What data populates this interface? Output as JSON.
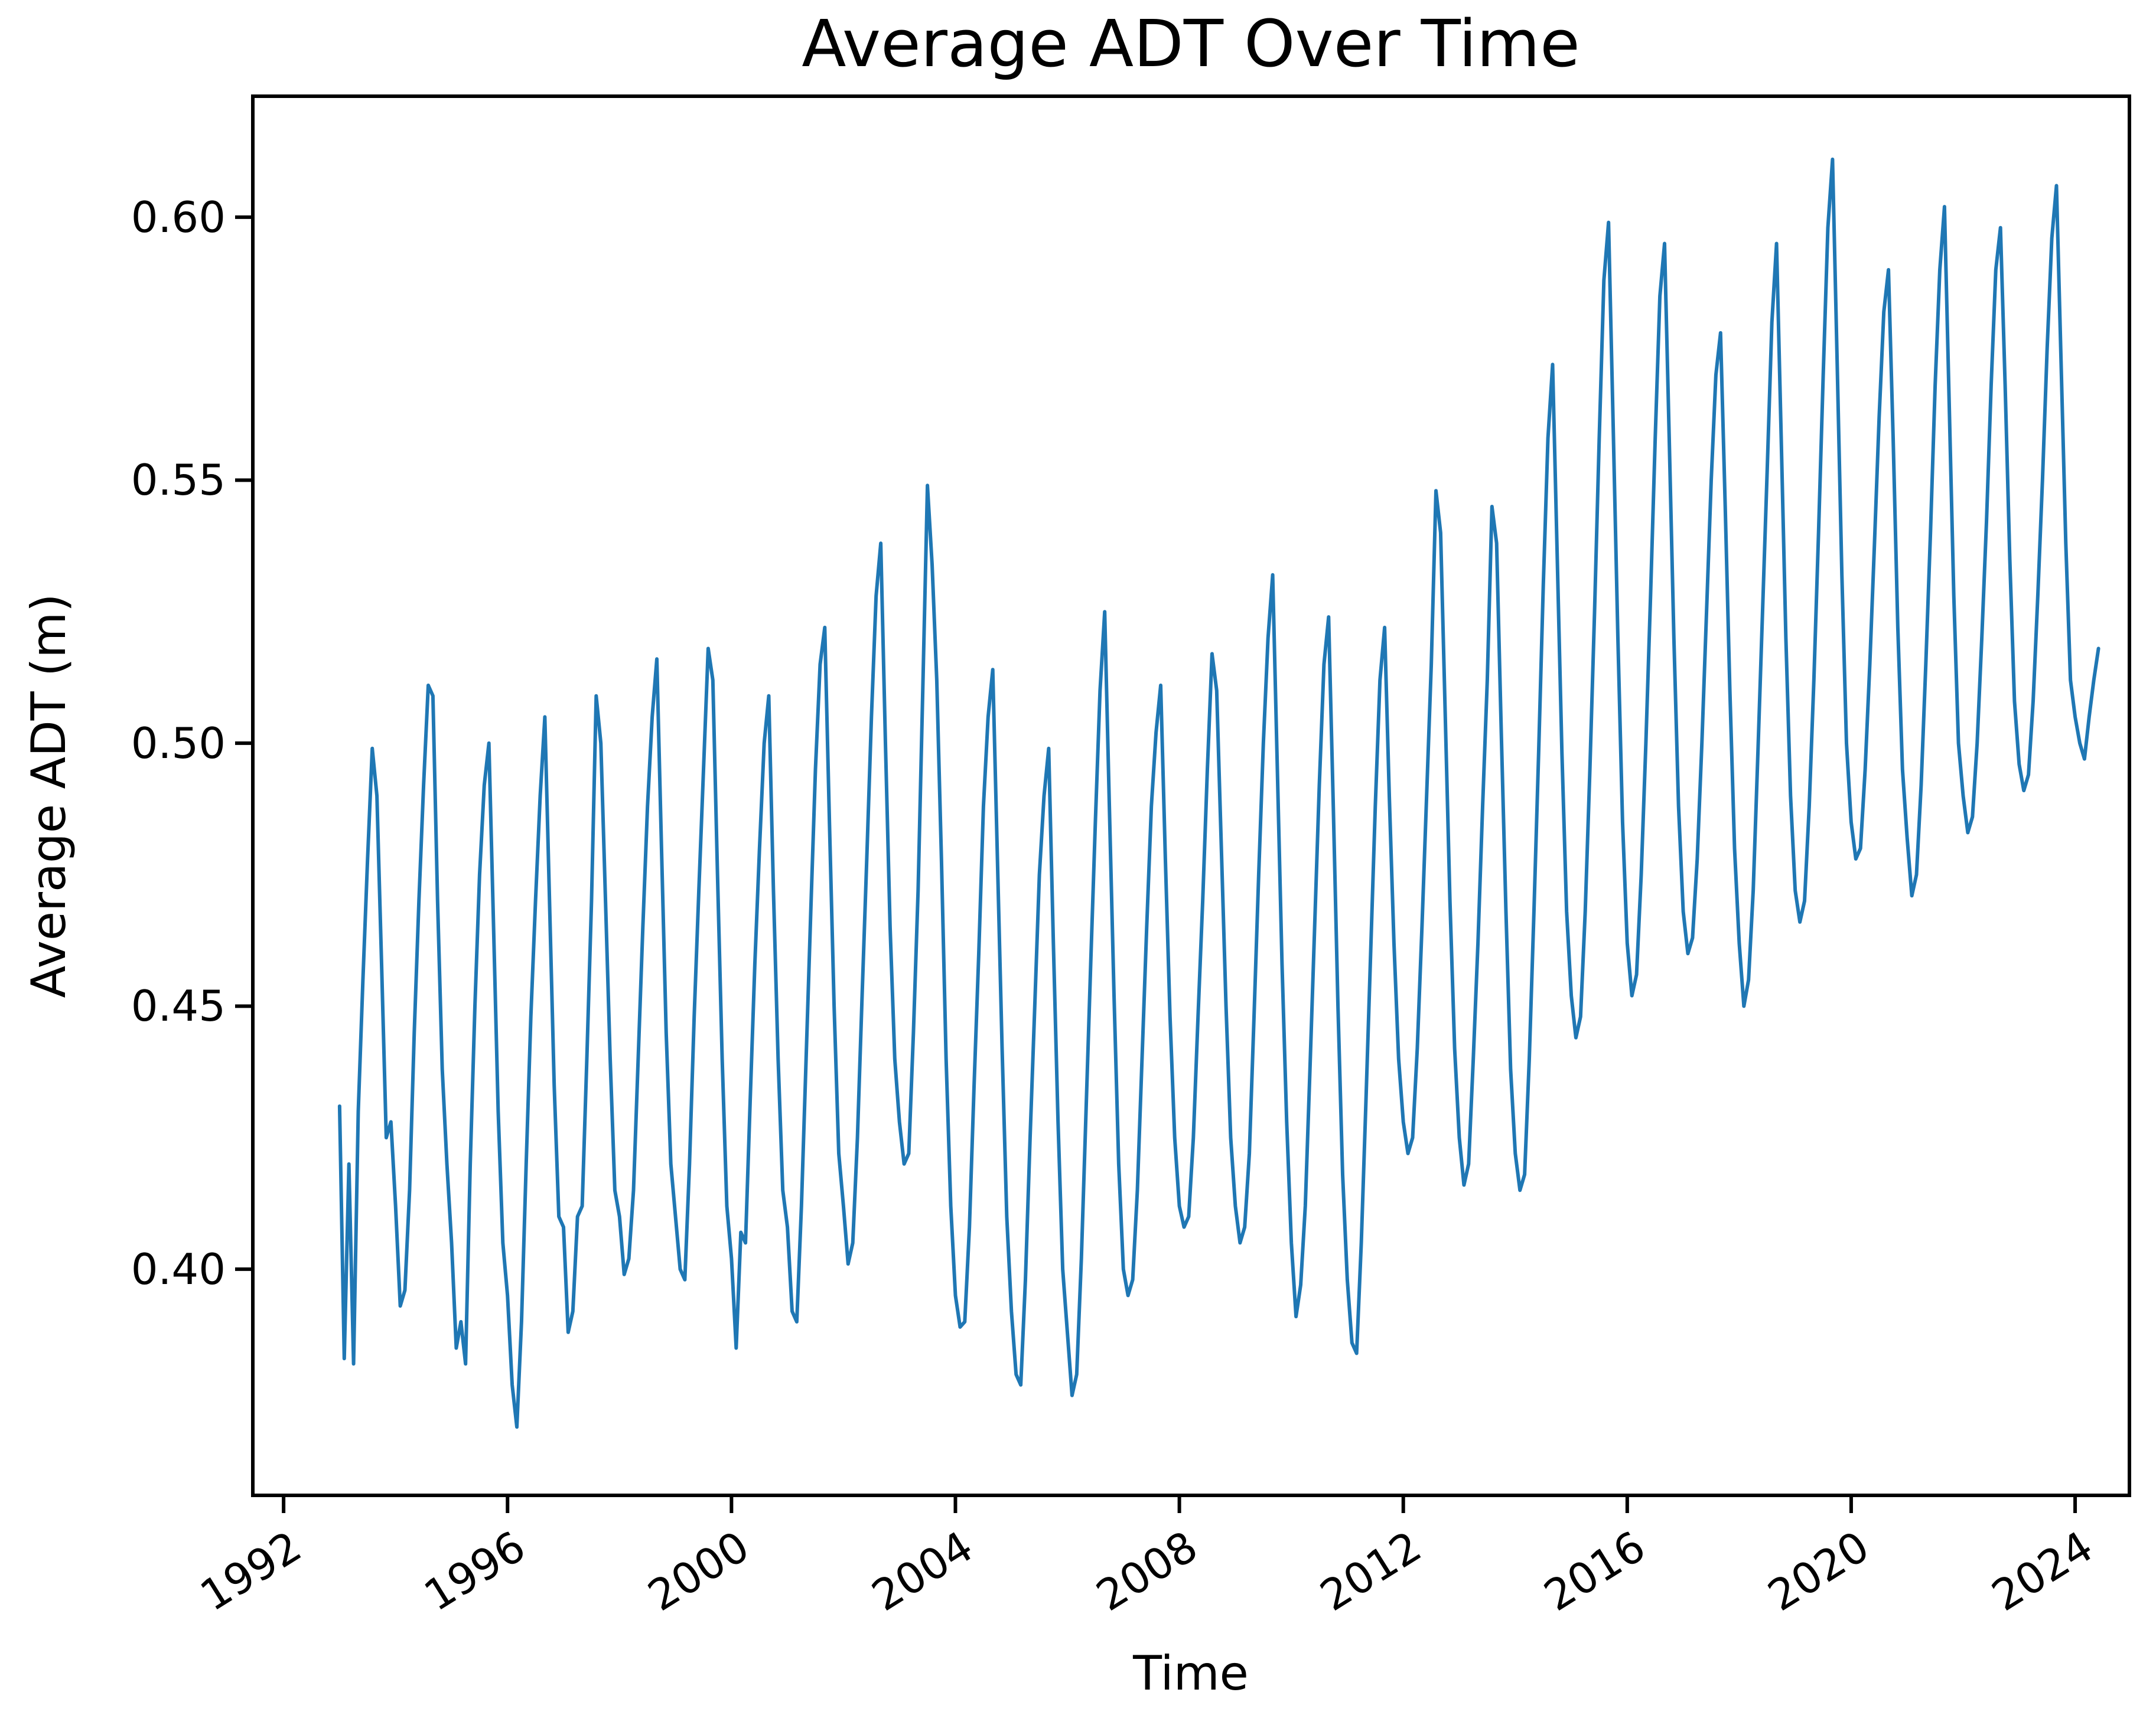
{
  "figure": {
    "title": "Average ADT Over Time",
    "x_axis_label": "Time",
    "y_axis_label": "Average ADT (m)"
  },
  "chart_data": {
    "type": "line",
    "title": "Average ADT Over Time",
    "xlabel": "Time",
    "ylabel": "Average ADT (m)",
    "grid": false,
    "legend": "none",
    "line_color": "#1f77b4",
    "axis_color": "#000000",
    "text_color": "#000000",
    "background_color": "#ffffff",
    "xlim": [
      1991.45,
      2024.97
    ],
    "ylim": [
      0.357,
      0.623
    ],
    "x_tick_values": [
      1992,
      1996,
      2000,
      2004,
      2008,
      2012,
      2016,
      2020,
      2024
    ],
    "x_tick_labels": [
      "1992",
      "1996",
      "2000",
      "2004",
      "2008",
      "2012",
      "2016",
      "2020",
      "2024"
    ],
    "x_tick_rotation_deg": 32,
    "y_tick_values": [
      0.4,
      0.45,
      0.5,
      0.55,
      0.6
    ],
    "y_tick_labels": [
      "0.40",
      "0.45",
      "0.50",
      "0.55",
      "0.60"
    ],
    "series": [
      {
        "name": "Average ADT (m), monthly",
        "frequency": "monthly",
        "start_year": 1993,
        "years": [
          {
            "year": 1993,
            "values": [
              0.431,
              0.383,
              0.42,
              0.382,
              0.43,
              0.455,
              0.478,
              0.499,
              0.49,
              0.458,
              0.425,
              0.428
            ]
          },
          {
            "year": 1994,
            "values": [
              0.412,
              0.393,
              0.396,
              0.415,
              0.445,
              0.47,
              0.492,
              0.511,
              0.509,
              0.47,
              0.438,
              0.42
            ]
          },
          {
            "year": 1995,
            "values": [
              0.405,
              0.385,
              0.39,
              0.382,
              0.42,
              0.45,
              0.475,
              0.492,
              0.5,
              0.465,
              0.43,
              0.405
            ]
          },
          {
            "year": 1996,
            "values": [
              0.395,
              0.378,
              0.37,
              0.39,
              0.42,
              0.448,
              0.47,
              0.49,
              0.505,
              0.47,
              0.435,
              0.41
            ]
          },
          {
            "year": 1997,
            "values": [
              0.408,
              0.388,
              0.392,
              0.41,
              0.412,
              0.44,
              0.47,
              0.509,
              0.5,
              0.47,
              0.44,
              0.415
            ]
          },
          {
            "year": 1998,
            "values": [
              0.41,
              0.399,
              0.402,
              0.415,
              0.44,
              0.465,
              0.488,
              0.505,
              0.516,
              0.48,
              0.445,
              0.42
            ]
          },
          {
            "year": 1999,
            "values": [
              0.41,
              0.4,
              0.398,
              0.42,
              0.448,
              0.472,
              0.495,
              0.518,
              0.512,
              0.475,
              0.44,
              0.412
            ]
          },
          {
            "year": 2000,
            "values": [
              0.402,
              0.385,
              0.407,
              0.405,
              0.432,
              0.458,
              0.48,
              0.5,
              0.509,
              0.472,
              0.44,
              0.415
            ]
          },
          {
            "year": 2001,
            "values": [
              0.408,
              0.392,
              0.39,
              0.412,
              0.44,
              0.468,
              0.495,
              0.515,
              0.522,
              0.485,
              0.45,
              0.422
            ]
          },
          {
            "year": 2002,
            "values": [
              0.412,
              0.401,
              0.405,
              0.425,
              0.452,
              0.478,
              0.505,
              0.528,
              0.538,
              0.5,
              0.465,
              0.44
            ]
          },
          {
            "year": 2003,
            "values": [
              0.428,
              0.42,
              0.422,
              0.445,
              0.472,
              0.51,
              0.549,
              0.534,
              0.512,
              0.478,
              0.44,
              0.412
            ]
          },
          {
            "year": 2004,
            "values": [
              0.395,
              0.389,
              0.39,
              0.408,
              0.435,
              0.46,
              0.488,
              0.505,
              0.514,
              0.478,
              0.442,
              0.41
            ]
          },
          {
            "year": 2005,
            "values": [
              0.392,
              0.38,
              0.378,
              0.398,
              0.425,
              0.45,
              0.475,
              0.49,
              0.499,
              0.462,
              0.428,
              0.4
            ]
          },
          {
            "year": 2006,
            "values": [
              0.388,
              0.376,
              0.38,
              0.402,
              0.43,
              0.458,
              0.485,
              0.51,
              0.525,
              0.488,
              0.452,
              0.42
            ]
          },
          {
            "year": 2007,
            "values": [
              0.4,
              0.395,
              0.398,
              0.415,
              0.44,
              0.465,
              0.488,
              0.502,
              0.511,
              0.478,
              0.448,
              0.425
            ]
          },
          {
            "year": 2008,
            "values": [
              0.412,
              0.408,
              0.41,
              0.425,
              0.448,
              0.47,
              0.495,
              0.517,
              0.51,
              0.48,
              0.45,
              0.425
            ]
          },
          {
            "year": 2009,
            "values": [
              0.412,
              0.405,
              0.408,
              0.422,
              0.448,
              0.475,
              0.5,
              0.52,
              0.532,
              0.495,
              0.458,
              0.428
            ]
          },
          {
            "year": 2010,
            "values": [
              0.405,
              0.391,
              0.397,
              0.412,
              0.438,
              0.465,
              0.492,
              0.515,
              0.524,
              0.488,
              0.45,
              0.418
            ]
          },
          {
            "year": 2011,
            "values": [
              0.398,
              0.386,
              0.384,
              0.405,
              0.432,
              0.46,
              0.488,
              0.512,
              0.522,
              0.49,
              0.462,
              0.44
            ]
          },
          {
            "year": 2012,
            "values": [
              0.428,
              0.422,
              0.425,
              0.442,
              0.465,
              0.49,
              0.515,
              0.548,
              0.54,
              0.505,
              0.47,
              0.442
            ]
          },
          {
            "year": 2013,
            "values": [
              0.425,
              0.416,
              0.42,
              0.44,
              0.462,
              0.488,
              0.512,
              0.545,
              0.538,
              0.502,
              0.468,
              0.438
            ]
          },
          {
            "year": 2014,
            "values": [
              0.422,
              0.415,
              0.418,
              0.44,
              0.468,
              0.498,
              0.53,
              0.558,
              0.572,
              0.535,
              0.498,
              0.468
            ]
          },
          {
            "year": 2015,
            "values": [
              0.452,
              0.444,
              0.448,
              0.468,
              0.495,
              0.525,
              0.558,
              0.588,
              0.599,
              0.56,
              0.52,
              0.485
            ]
          },
          {
            "year": 2016,
            "values": [
              0.462,
              0.452,
              0.456,
              0.475,
              0.5,
              0.528,
              0.558,
              0.585,
              0.595,
              0.558,
              0.52,
              0.488
            ]
          },
          {
            "year": 2017,
            "values": [
              0.468,
              0.46,
              0.463,
              0.478,
              0.5,
              0.525,
              0.55,
              0.57,
              0.578,
              0.545,
              0.51,
              0.48
            ]
          },
          {
            "year": 2018,
            "values": [
              0.462,
              0.45,
              0.455,
              0.472,
              0.498,
              0.525,
              0.552,
              0.58,
              0.595,
              0.558,
              0.52,
              0.49
            ]
          },
          {
            "year": 2019,
            "values": [
              0.472,
              0.466,
              0.47,
              0.488,
              0.512,
              0.54,
              0.57,
              0.598,
              0.611,
              0.572,
              0.532,
              0.5
            ]
          },
          {
            "year": 2020,
            "values": [
              0.485,
              0.478,
              0.48,
              0.495,
              0.515,
              0.538,
              0.562,
              0.582,
              0.59,
              0.558,
              0.522,
              0.495
            ]
          },
          {
            "year": 2021,
            "values": [
              0.482,
              0.471,
              0.475,
              0.492,
              0.515,
              0.54,
              0.568,
              0.59,
              0.602,
              0.565,
              0.528,
              0.5
            ]
          },
          {
            "year": 2022,
            "values": [
              0.49,
              0.483,
              0.486,
              0.5,
              0.52,
              0.542,
              0.568,
              0.59,
              0.598,
              0.568,
              0.535,
              0.508
            ]
          },
          {
            "year": 2023,
            "values": [
              0.496,
              0.491,
              0.494,
              0.508,
              0.528,
              0.55,
              0.575,
              0.596,
              0.606,
              0.572,
              0.538,
              0.512
            ]
          },
          {
            "year": 2024,
            "values": [
              0.505,
              0.5,
              0.497,
              0.505,
              0.512,
              0.518
            ]
          }
        ]
      }
    ]
  }
}
